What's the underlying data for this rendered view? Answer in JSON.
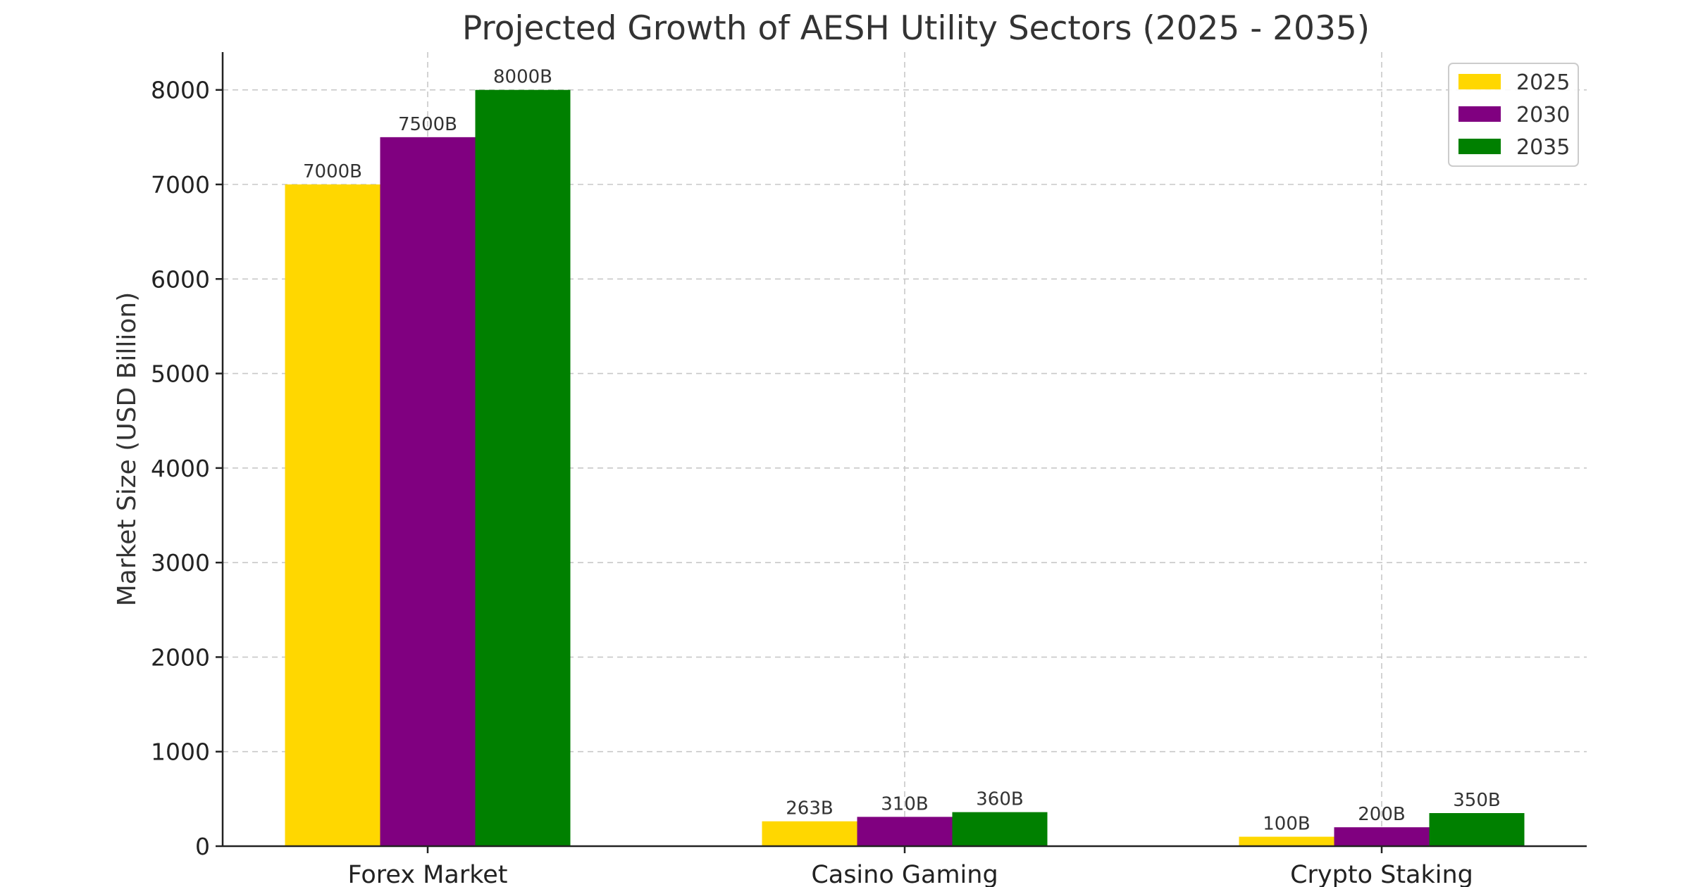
{
  "chart_data": {
    "type": "bar",
    "title": "Projected Growth of AESH Utility Sectors (2025 - 2035)",
    "xlabel": "",
    "ylabel": "Market Size (USD Billion)",
    "categories": [
      "Forex Market",
      "Casino Gaming",
      "Crypto Staking"
    ],
    "series": [
      {
        "name": "2025",
        "color": "#FFD700",
        "values": [
          7000,
          263,
          100
        ],
        "labels": [
          "7000B",
          "263B",
          "100B"
        ]
      },
      {
        "name": "2030",
        "color": "#800080",
        "values": [
          7500,
          310,
          200
        ],
        "labels": [
          "7500B",
          "310B",
          "200B"
        ]
      },
      {
        "name": "2035",
        "color": "#008000",
        "values": [
          8000,
          360,
          350
        ],
        "labels": [
          "8000B",
          "360B",
          "350B"
        ]
      }
    ],
    "ylim": [
      0,
      8400
    ],
    "yticks": [
      0,
      1000,
      2000,
      3000,
      4000,
      5000,
      6000,
      7000,
      8000
    ],
    "grid": true,
    "legend": "top-right"
  }
}
